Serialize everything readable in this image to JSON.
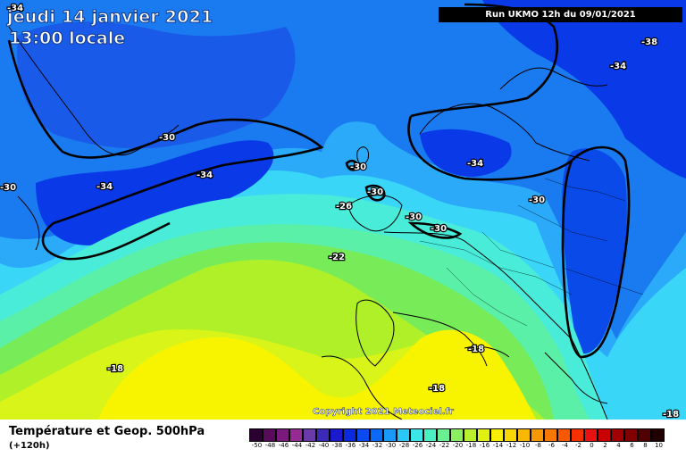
{
  "header": {
    "date": "jeudi 14 janvier 2021",
    "local_time": "13:00 locale",
    "run": "Run UKMO 12h du 09/01/2021"
  },
  "footer": {
    "product": "Température et Geop. 500hPa",
    "lead_time": "(+120h)",
    "copyright": "Copyright 2021 Meteociel.fr"
  },
  "isotherm_labels": [
    "-34",
    "-38",
    "-34",
    "-30",
    "-34",
    "-30",
    "-34",
    "-30",
    "-34",
    "-30",
    "-26",
    "-30",
    "-30",
    "-30",
    "-22",
    "-18",
    "-18",
    "-18",
    "-18"
  ],
  "legend": {
    "values": [
      "-50",
      "-48",
      "-46",
      "-44",
      "-42",
      "-40",
      "-38",
      "-36",
      "-34",
      "-32",
      "-30",
      "-28",
      "-26",
      "-24",
      "-22",
      "-20",
      "-18",
      "-16",
      "-14",
      "-12",
      "-10",
      "-8",
      "-6",
      "-4",
      "-2",
      "0",
      "2",
      "4",
      "6",
      "8",
      "10"
    ],
    "colors": [
      "#2a0030",
      "#5a0a5a",
      "#7a1a7a",
      "#932b93",
      "#6a3aa8",
      "#3a2ab8",
      "#1a1acc",
      "#0a2ae0",
      "#0a4af0",
      "#0a6af8",
      "#1a9af8",
      "#2ac8f8",
      "#3ae6e8",
      "#4af0c0",
      "#6af090",
      "#8af060",
      "#b8f030",
      "#e0f010",
      "#f8f000",
      "#f8d800",
      "#f8b800",
      "#f89800",
      "#f87800",
      "#f85800",
      "#f83000",
      "#e81010",
      "#c80000",
      "#a00000",
      "#800000",
      "#500000",
      "#200000"
    ]
  },
  "palette": {
    "deep_blue": "#0a3ae8",
    "blue": "#1a7af0",
    "light_blue": "#2aaaf8",
    "cyan": "#3ad6f8",
    "aqua": "#48ecd8",
    "mint": "#5af0a8",
    "green": "#78ec58",
    "lime": "#b0f028",
    "yellow_green": "#d8f418",
    "yellow": "#f8f400"
  }
}
